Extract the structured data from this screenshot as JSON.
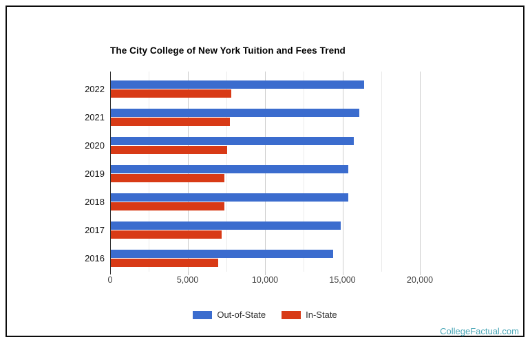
{
  "chart_data": {
    "type": "bar",
    "orientation": "horizontal",
    "title": "The City College of New York Tuition and Fees Trend",
    "categories": [
      "2022",
      "2021",
      "2020",
      "2019",
      "2018",
      "2017",
      "2016"
    ],
    "series": [
      {
        "name": "Out-of-State",
        "color": "#3b6cce",
        "values": [
          16340,
          16030,
          15680,
          15310,
          15310,
          14830,
          14350
        ]
      },
      {
        "name": "In-State",
        "color": "#d83a16",
        "values": [
          7780,
          7670,
          7510,
          7350,
          7350,
          7150,
          6950
        ]
      }
    ],
    "xlabel": "",
    "ylabel": "",
    "xlim": [
      0,
      20000
    ],
    "x_ticks": [
      0,
      5000,
      10000,
      15000,
      20000
    ],
    "x_tick_labels": [
      "0",
      "5,000",
      "10,000",
      "15,000",
      "20,000"
    ],
    "minor_grid_interval": 2500,
    "major_grid_interval": 5000,
    "grid": true,
    "legend_position": "bottom"
  },
  "footer": {
    "watermark": "CollegeFactual.com",
    "watermark_color": "#4ba7b7"
  }
}
